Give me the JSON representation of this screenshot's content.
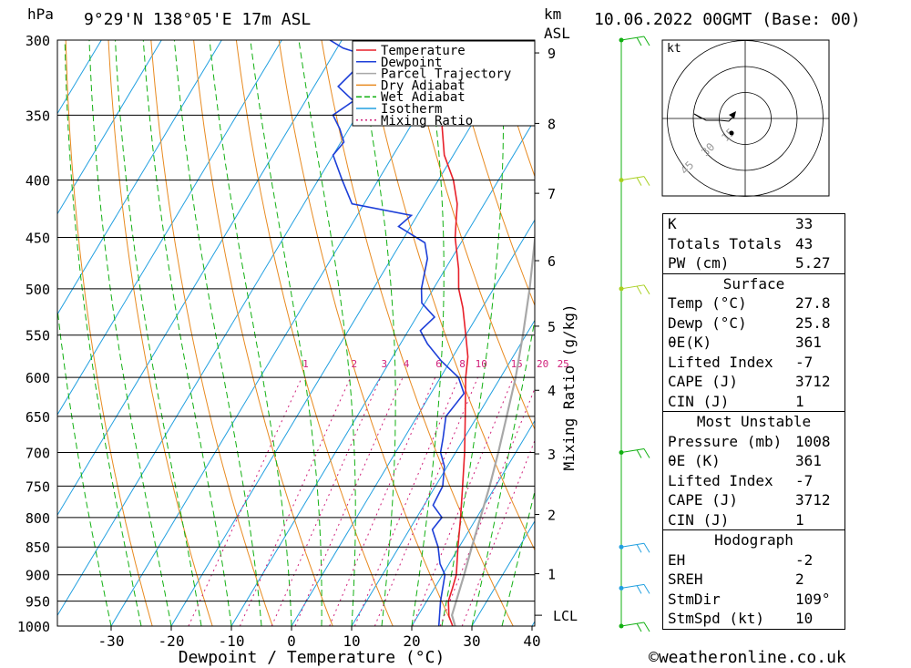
{
  "header": {
    "pressure_unit": "hPa",
    "location": "9°29'N 138°05'E 17m ASL",
    "km_label": "km",
    "asl_label": "ASL",
    "datetime": "10.06.2022 00GMT (Base: 00)"
  },
  "chart_data": {
    "type": "line",
    "xlabel": "Dewpoint / Temperature (°C)",
    "ylabel": "",
    "secondary_ylabel": "Mixing Ratio (g/kg)",
    "x_ticks": [
      -30,
      -20,
      -10,
      0,
      10,
      20,
      30,
      40
    ],
    "pressure_levels": [
      300,
      350,
      400,
      450,
      500,
      550,
      600,
      650,
      700,
      750,
      800,
      850,
      900,
      950,
      1000
    ],
    "km_ticks": [
      1,
      2,
      3,
      4,
      5,
      6,
      7,
      8,
      9
    ],
    "lcl_label": "LCL",
    "lcl_pressure": 978,
    "mixing_ratio_labels": [
      1,
      2,
      3,
      4,
      6,
      8,
      10,
      15,
      20,
      25
    ],
    "mixing_ratio_label_pressure": 590,
    "legend": [
      "Temperature",
      "Dewpoint",
      "Parcel Trajectory",
      "Dry Adiabat",
      "Wet Adiabat",
      "Isotherm",
      "Mixing Ratio"
    ],
    "colors": {
      "temperature": "#e8202a",
      "dewpoint": "#1d3fd8",
      "parcel": "#a8a8a8",
      "dry_adiabat": "#e88a20",
      "wet_adiabat": "#12b012",
      "isotherm": "#22a0e0",
      "mixing_ratio": "#d0207a"
    },
    "series": [
      {
        "name": "Temperature",
        "p": [
          1008,
          1000,
          980,
          950,
          925,
          900,
          850,
          800,
          750,
          700,
          650,
          600,
          575,
          550,
          520,
          500,
          480,
          450,
          420,
          400,
          380,
          350,
          330,
          300
        ],
        "t": [
          27.8,
          26.8,
          25.2,
          23.6,
          23,
          22.3,
          19.8,
          17.3,
          14.5,
          11.5,
          8,
          4.2,
          2.5,
          0,
          -3.2,
          -5.8,
          -7.8,
          -11.5,
          -14.5,
          -17.5,
          -21.5,
          -26,
          -30,
          -36
        ]
      },
      {
        "name": "Dewpoint",
        "p": [
          1008,
          1000,
          950,
          900,
          880,
          850,
          820,
          800,
          780,
          750,
          720,
          700,
          680,
          650,
          620,
          600,
          580,
          560,
          545,
          530,
          515,
          500,
          485,
          470,
          455,
          440,
          430,
          420,
          400,
          380,
          370,
          360,
          350,
          340,
          330,
          320,
          310,
          305,
          300
        ],
        "t": [
          25.8,
          24.5,
          22.3,
          20.4,
          18.5,
          16.5,
          13.8,
          14.2,
          11.5,
          11.2,
          9.5,
          7.5,
          6.5,
          4.8,
          5.5,
          3,
          -1.5,
          -5.5,
          -8,
          -7,
          -10.5,
          -12,
          -13,
          -14,
          -16,
          -22,
          -21,
          -32,
          -36,
          -40,
          -39.5,
          -41.5,
          -44,
          -42,
          -46,
          -45,
          -44,
          -49,
          -52
        ]
      },
      {
        "name": "Parcel Trajectory",
        "p": [
          1008,
          978,
          950,
          900,
          850,
          800,
          750,
          700,
          650,
          600,
          550,
          500,
          450,
          400,
          350,
          300
        ],
        "t": [
          27.8,
          25.6,
          24.9,
          23.6,
          22.1,
          20.6,
          19.0,
          17.1,
          14.9,
          12.5,
          9.5,
          6.0,
          1.8,
          -3.5,
          -10,
          -18
        ]
      }
    ]
  },
  "hodograph": {
    "unit_label": "kt",
    "ring_labels": [
      "15",
      "30",
      "45"
    ]
  },
  "winds": [
    {
      "p": 1000,
      "color": "#12b012"
    },
    {
      "p": 925,
      "color": "#22a0e0"
    },
    {
      "p": 850,
      "color": "#22a0e0"
    },
    {
      "p": 700,
      "color": "#12b012"
    },
    {
      "p": 500,
      "color": "#a8d020"
    },
    {
      "p": 400,
      "color": "#a8d020"
    },
    {
      "p": 300,
      "color": "#12b012"
    }
  ],
  "indices": [
    {
      "label": "K",
      "value": "33"
    },
    {
      "label": "Totals Totals",
      "value": "43"
    },
    {
      "label": "PW (cm)",
      "value": "5.27"
    }
  ],
  "surface": {
    "title": "Surface",
    "rows": [
      {
        "label": "Temp (°C)",
        "value": "27.8"
      },
      {
        "label": "Dewp (°C)",
        "value": "25.8"
      },
      {
        "label": "θE(K)",
        "value": "361"
      },
      {
        "label": "Lifted Index",
        "value": "-7"
      },
      {
        "label": "CAPE (J)",
        "value": "3712"
      },
      {
        "label": "CIN (J)",
        "value": "1"
      }
    ]
  },
  "most_unstable": {
    "title": "Most Unstable",
    "rows": [
      {
        "label": "Pressure (mb)",
        "value": "1008"
      },
      {
        "label": "θE (K)",
        "value": "361"
      },
      {
        "label": "Lifted Index",
        "value": "-7"
      },
      {
        "label": "CAPE (J)",
        "value": "3712"
      },
      {
        "label": "CIN (J)",
        "value": "1"
      }
    ]
  },
  "hodograph_table": {
    "title": "Hodograph",
    "rows": [
      {
        "label": "EH",
        "value": "-2"
      },
      {
        "label": "SREH",
        "value": "2"
      },
      {
        "label": "StmDir",
        "value": "109°"
      },
      {
        "label": "StmSpd (kt)",
        "value": "10"
      }
    ]
  },
  "copyright": "©weatheronline.co.uk"
}
